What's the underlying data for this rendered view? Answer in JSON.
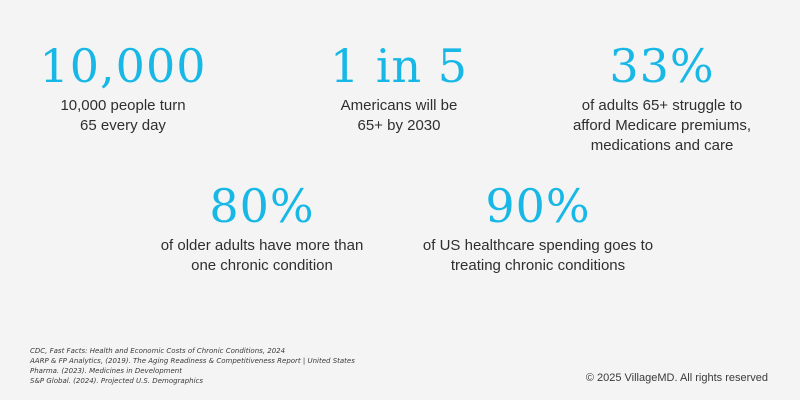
{
  "colors": {
    "background": "#f4f4f4",
    "accent": "#17b8e6",
    "text": "#2f2f2f"
  },
  "stats": [
    {
      "value": "10,000",
      "lines": [
        "10,000 people turn",
        "65 every day"
      ]
    },
    {
      "value": "1 in 5",
      "lines": [
        "Americans will be",
        "65+ by 2030"
      ]
    },
    {
      "value": "33%",
      "lines": [
        "of adults 65+ struggle to",
        "afford Medicare premiums,",
        "medications and care"
      ]
    },
    {
      "value": "80%",
      "lines": [
        "of older adults have more than",
        "one chronic condition"
      ]
    },
    {
      "value": "90%",
      "lines": [
        "of US healthcare spending goes to",
        "treating chronic conditions"
      ]
    }
  ],
  "sources": [
    "CDC, Fast Facts: Health and Economic Costs of Chronic Conditions, 2024",
    "AARP & FP Analytics, (2019). The Aging Readiness & Competitiveness Report | United States",
    "Pharma. (2023). Medicines in Development",
    "S&P Global. (2024). Projected U.S. Demographics"
  ],
  "copyright": "© 2025 VillageMD. All rights reserved"
}
